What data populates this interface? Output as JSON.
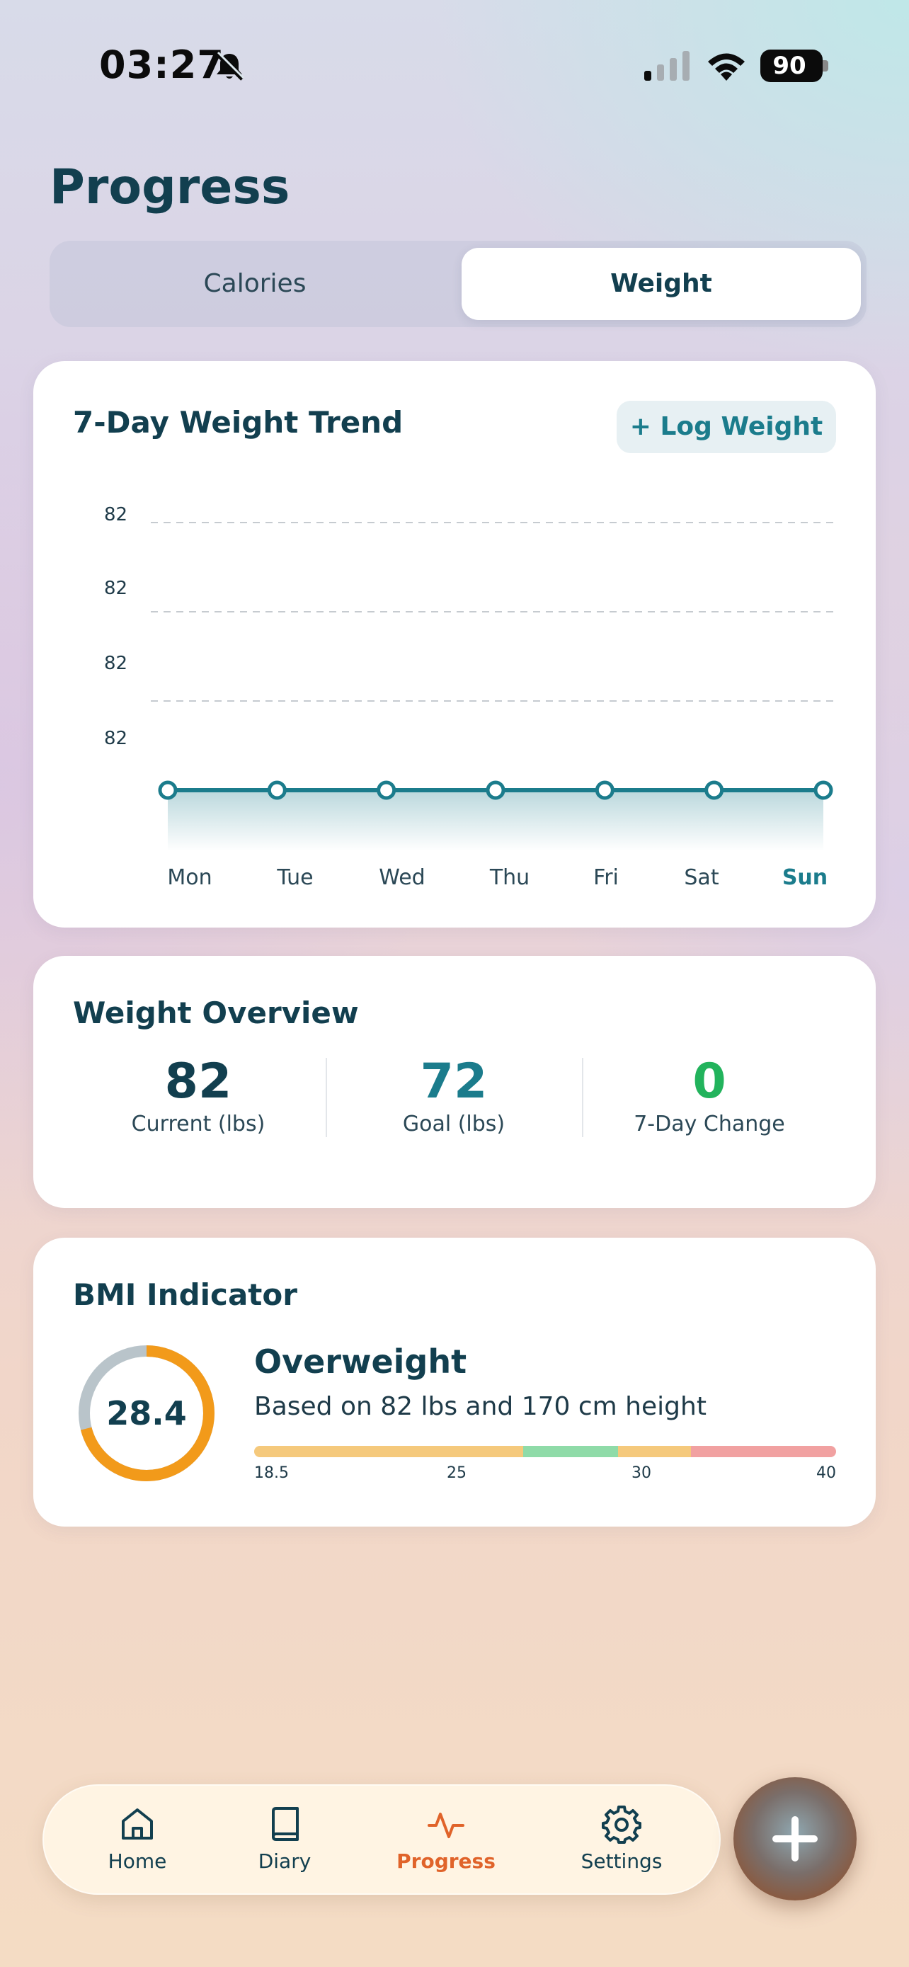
{
  "status_bar": {
    "time": "03:27",
    "battery": "90"
  },
  "page": {
    "title": "Progress"
  },
  "tabs": [
    {
      "label": "Calories",
      "active": false
    },
    {
      "label": "Weight",
      "active": true
    }
  ],
  "trend_card": {
    "title": "7-Day Weight Trend",
    "log_button": "+ Log Weight"
  },
  "chart_data": {
    "type": "area",
    "title": "7-Day Weight Trend",
    "categories": [
      "Mon",
      "Tue",
      "Wed",
      "Thu",
      "Fri",
      "Sat",
      "Sun"
    ],
    "series": [
      {
        "values": [
          82,
          82,
          82,
          82,
          82,
          82,
          82
        ]
      }
    ],
    "y_tick_labels": [
      "82",
      "82",
      "82",
      "82"
    ],
    "highlighted_category": "Sun",
    "grid": "dashed horizontal",
    "line_color": "#1b7c8c"
  },
  "overview": {
    "title": "Weight Overview",
    "metrics": [
      {
        "value": "82",
        "label": "Current (lbs)",
        "color": "#123f4f"
      },
      {
        "value": "72",
        "label": "Goal (lbs)",
        "color": "#1b7c8c"
      },
      {
        "value": "0",
        "label": "7-Day Change",
        "color": "#22b35c"
      }
    ]
  },
  "bmi": {
    "title": "BMI Indicator",
    "value": "28.4",
    "category": "Overweight",
    "description": "Based on 82 lbs and 170 cm height",
    "ring_fraction": 0.71,
    "ring_color": "#f29a1a",
    "scale_labels": [
      "18.5",
      "25",
      "30",
      "40"
    ],
    "scale_colors": [
      "#f5c97c",
      "#8fdba8",
      "#f5c97c",
      "#f1a1a1"
    ]
  },
  "nav": {
    "items": [
      {
        "label": "Home",
        "icon": "home-icon",
        "active": false
      },
      {
        "label": "Diary",
        "icon": "book-icon",
        "active": false
      },
      {
        "label": "Progress",
        "icon": "activity-icon",
        "active": true
      },
      {
        "label": "Settings",
        "icon": "gear-icon",
        "active": false
      }
    ],
    "active_color": "#e0632a"
  },
  "fab": {
    "icon": "plus-icon"
  }
}
